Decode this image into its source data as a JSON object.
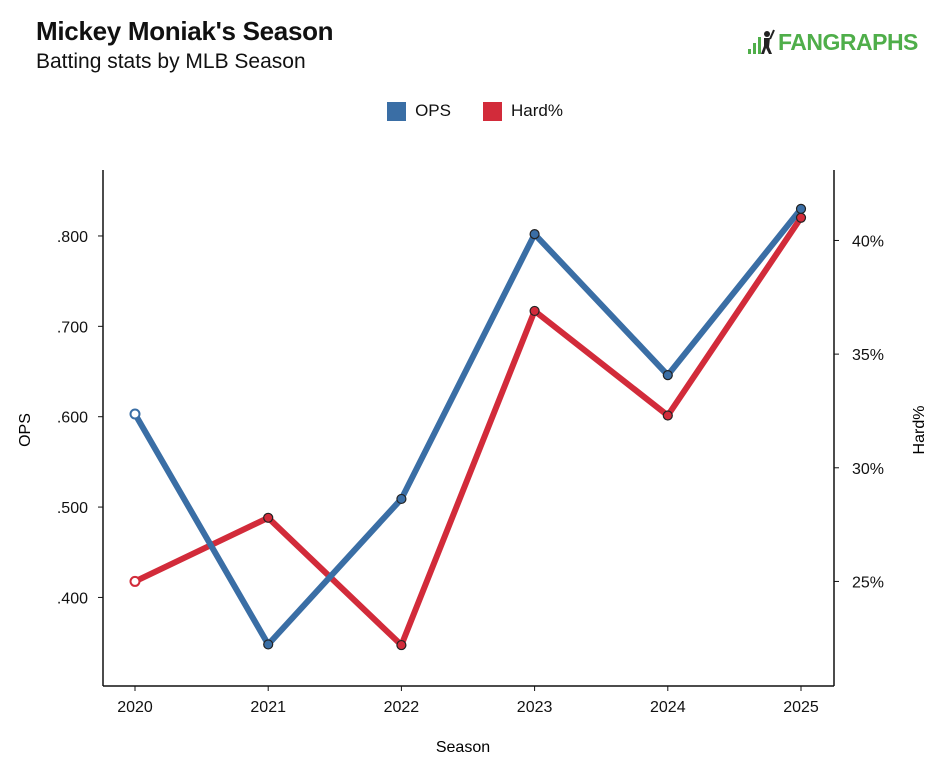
{
  "header": {
    "title": "Mickey Moniak's Season",
    "subtitle": "Batting stats by MLB Season"
  },
  "logo": {
    "text": "FANGRAPHS",
    "icon": "fangraphs-logo-icon",
    "color": "#4fae4a"
  },
  "chart_data": {
    "type": "line",
    "title": "Mickey Moniak's Season",
    "subtitle": "Batting stats by MLB Season",
    "xlabel": "Season",
    "ylabel_left": "OPS",
    "ylabel_right": "Hard%",
    "x": [
      "2020",
      "2021",
      "2022",
      "2023",
      "2024",
      "2025"
    ],
    "y_left_ticks": [
      ".400",
      ".500",
      ".600",
      ".700",
      ".800"
    ],
    "y_left_tick_values": [
      0.4,
      0.5,
      0.6,
      0.7,
      0.8
    ],
    "y_left_range": [
      0.302,
      0.873
    ],
    "y_right_ticks": [
      "25%",
      "30%",
      "35%",
      "40%"
    ],
    "y_right_tick_values": [
      25,
      30,
      35,
      40
    ],
    "y_right_range": [
      20.4,
      43.1
    ],
    "grid": false,
    "legend_position": "top-center",
    "series": [
      {
        "name": "OPS",
        "axis": "left",
        "color": "#3a6ea5",
        "values": [
          0.603,
          0.348,
          0.509,
          0.802,
          0.646,
          0.83
        ]
      },
      {
        "name": "Hard%",
        "axis": "right",
        "color": "#d22b3a",
        "values": [
          25.0,
          27.8,
          22.2,
          36.9,
          32.3,
          41.0
        ]
      }
    ]
  }
}
